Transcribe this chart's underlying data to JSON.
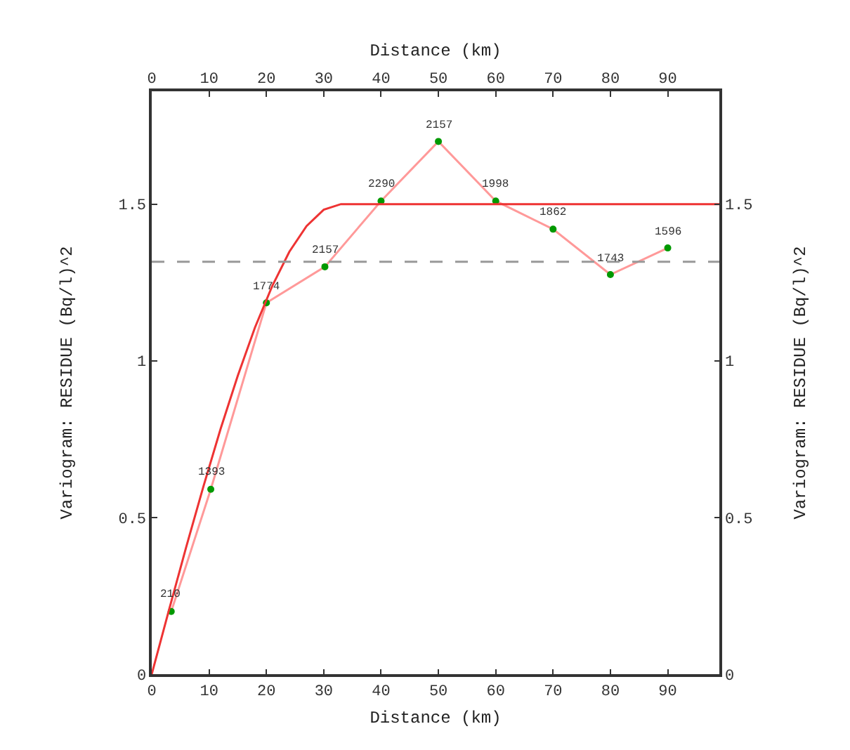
{
  "chart_data": {
    "type": "line",
    "xlabel": "Distance (km)",
    "x2label": "Distance (km)",
    "ylabel": "Variogram: RESIDUE (Bq/l)^2",
    "y2label": "Variogram: RESIDUE (Bq/l)^2",
    "xlim": [
      0,
      99
    ],
    "xticks": [
      0,
      10,
      20,
      30,
      40,
      50,
      60,
      70,
      80,
      90
    ],
    "x2lim": [
      0,
      99
    ],
    "x2ticks": [
      0,
      10,
      20,
      30,
      40,
      50,
      60,
      70,
      80,
      90
    ],
    "ylim": [
      0,
      1.86
    ],
    "yticks": [
      0,
      0.5,
      1.0,
      1.5
    ],
    "y2lim": [
      0,
      1.86
    ],
    "y2ticks": [
      0,
      0.5,
      1.0,
      1.5
    ],
    "grid": false,
    "series": [
      {
        "type": "line",
        "color": "#ff9999",
        "x": [
          3.4,
          10.3,
          20,
          30.2,
          40,
          50,
          60,
          70,
          80,
          90
        ],
        "values": [
          0.2,
          0.59,
          1.185,
          1.3,
          1.51,
          1.7,
          1.51,
          1.42,
          1.275,
          1.36
        ]
      },
      {
        "type": "scatter",
        "marker": "circle",
        "color": "#009900",
        "x": [
          3.4,
          10.3,
          20,
          30.2,
          40,
          50,
          60,
          70,
          80,
          90
        ],
        "values": [
          0.2,
          0.59,
          1.185,
          1.3,
          1.51,
          1.7,
          1.51,
          1.42,
          1.275,
          1.36
        ]
      },
      {
        "type": "line",
        "color": "#ee3333",
        "x": [
          0,
          3,
          6,
          9,
          12,
          15,
          18,
          21,
          24,
          27,
          30,
          33,
          99
        ],
        "values": [
          0,
          0.204,
          0.405,
          0.598,
          0.782,
          0.952,
          1.106,
          1.238,
          1.348,
          1.43,
          1.482,
          1.5,
          1.5
        ]
      }
    ],
    "annotations": [
      {
        "text": "210",
        "x": 3.4,
        "y": 0.2
      },
      {
        "text": "1393",
        "x": 10.3,
        "y": 0.59
      },
      {
        "text": "1774",
        "x": 20,
        "y": 1.185
      },
      {
        "text": "2157",
        "x": 30.2,
        "y": 1.3
      },
      {
        "text": "2290",
        "x": 40,
        "y": 1.51
      },
      {
        "text": "2157",
        "x": 50,
        "y": 1.7
      },
      {
        "text": "1998",
        "x": 60,
        "y": 1.51
      },
      {
        "text": "1862",
        "x": 70,
        "y": 1.42
      },
      {
        "text": "1743",
        "x": 80,
        "y": 1.275
      },
      {
        "text": "1596",
        "x": 90,
        "y": 1.36
      }
    ],
    "ref_lines": [
      {
        "axis": "y",
        "value": 1.316,
        "color": "#999999",
        "line_style": "dashed"
      }
    ]
  }
}
